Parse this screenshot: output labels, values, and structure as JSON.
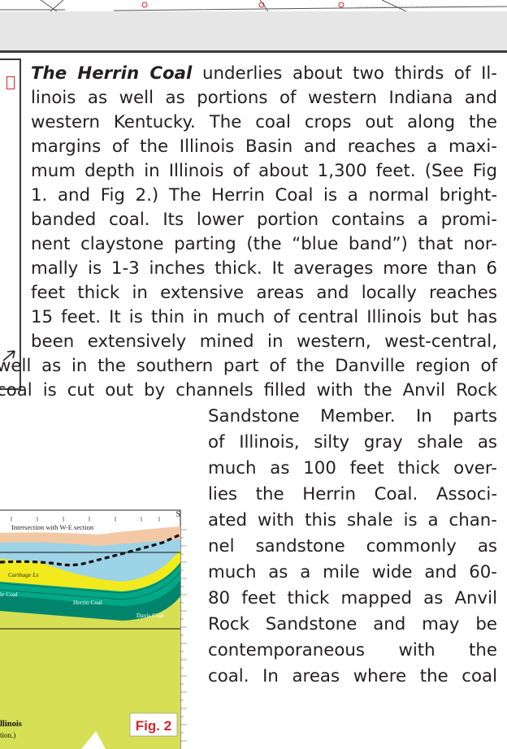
{
  "lines": [
    {
      "pre_bold": "The Herrin Coal",
      "text": " underlies about two thirds of Il-"
    },
    {
      "text": "linois as well as portions of western Indiana and"
    },
    {
      "text": "western Kentucky.  The coal crops out along the"
    },
    {
      "text": "margins of the Illinois Basin and reaches a maxi-"
    },
    {
      "text": "mum depth in Illinois of about 1,300 feet.  (See Fig"
    },
    {
      "text": "1. and Fig 2.)  The Herrin Coal is a normal bright-"
    },
    {
      "text": "banded coal. Its lower portion contains a promi-"
    },
    {
      "text": "nent claystone parting (the “blue band”) that nor-"
    },
    {
      "text": "mally is 1-3 inches thick.  It averages more than 6"
    },
    {
      "text": "feet thick in extensive areas and locally reaches"
    },
    {
      "text": "15 feet. It is thin in much of central Illinois but has"
    },
    {
      "text": "been extensively mined in western, west-central,"
    },
    {
      "text": "well as in the southern part of the Danville region of"
    },
    {
      "text": "coal is cut out by channels filled with the Anvil Rock"
    }
  ],
  "right_lines": [
    "Sandstone Member. In parts",
    "of Illinois, silty gray shale as",
    "much as 100 feet thick over-",
    "lies the Herrin Coal. Associ-",
    "ated with this shale is a chan-",
    "nel sandstone commonly as",
    "much as a mile wide and 60-",
    "80 feet thick mapped as Anvil",
    "Rock Sandstone and may be",
    "contemporaneous with the",
    "coal.  In areas where the coal"
  ],
  "figure2": {
    "label": "Fig. 2",
    "compass": "S",
    "intersection_label": "Intersection with W-E section",
    "unit_labels": [
      "Carthage Ls",
      "Herrin Coal",
      "Davis Coal",
      "le Coal"
    ],
    "caption_line1": "llinois",
    "caption_line2": "tion.)"
  },
  "colors": {
    "accent_red": "#d9232a",
    "shale_blue": "#9dd3e6",
    "sand_yellow": "#f2ea1c",
    "coal_teal": "#00a887",
    "lower_olive": "#d7df55",
    "top_tan": "#f3c9a5"
  }
}
